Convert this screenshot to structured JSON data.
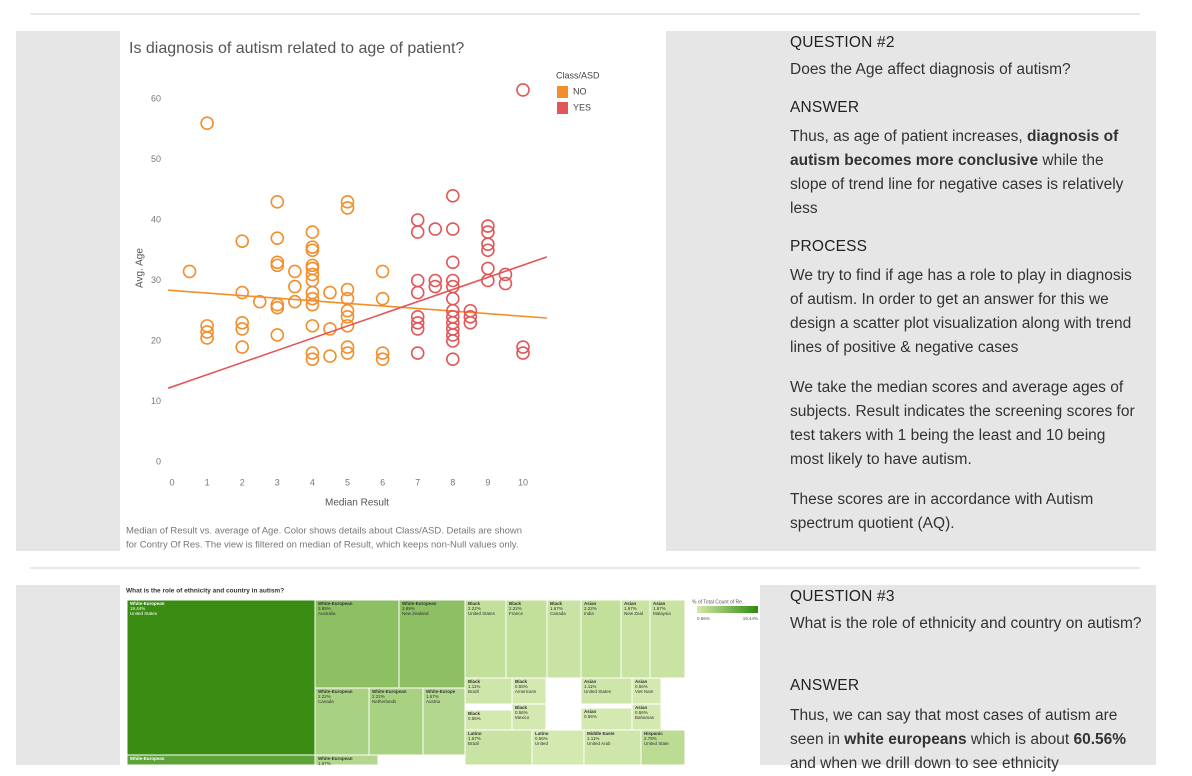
{
  "section1": {
    "question_label": "QUESTION #2",
    "question": "Does the Age affect diagnosis of autism?",
    "answer_label": "ANSWER",
    "answer": [
      {
        "text": "Thus, as age of patient increases, "
      },
      {
        "text": "diagnosis of autism becomes more conclusive",
        "bold": true
      },
      {
        "text": " while the slope of trend line for negative cases is relatively less"
      }
    ],
    "process_label": "PROCESS",
    "process": [
      "We try to find if age has a role to play in diagnosis of autism. In order to get an answer for this we design a scatter plot visualization along with trend lines of positive & negative cases",
      "We take the median scores and average ages of subjects. Result indicates the screening scores for test takers with 1 being the least and 10 being most likely to have autism.",
      "These scores are in accordance with Autism spectrum quotient (AQ)."
    ],
    "chart_data": {
      "type": "scatter",
      "title": "Is diagnosis of autism related to age of patient?",
      "x_label": "Median Result",
      "y_label": "Avg. Age",
      "legend_title": "Class/ASD",
      "caption": [
        "Median of Result vs. average of Age. Color shows details about Class/ASD. Details are shown",
        "for Contry Of Res. The view is filtered on median of Result, which keeps non-Null values only."
      ],
      "xlim": [
        -0.5,
        10.6
      ],
      "ylim": [
        -2,
        64
      ],
      "xticks": [
        0,
        1,
        2,
        3,
        4,
        5,
        6,
        7,
        8,
        9,
        10
      ],
      "yticks": [
        0,
        10,
        20,
        30,
        40,
        50,
        60
      ],
      "series": [
        {
          "name": "NO",
          "color": "#f28e2b",
          "x": [
            1,
            0.5,
            1,
            1,
            1,
            2,
            2,
            2,
            2,
            2,
            2.5,
            3,
            3,
            3,
            3,
            3,
            3,
            3,
            3.5,
            3.5,
            3.5,
            4,
            4,
            4,
            4,
            4,
            4,
            4,
            4,
            4,
            4,
            4,
            4,
            4,
            4.5,
            4.5,
            4.5,
            5,
            5,
            5,
            5,
            5,
            5,
            5,
            5,
            5,
            6,
            6,
            6,
            6
          ],
          "values": [
            56,
            31.5,
            21.5,
            20.5,
            22.5,
            36.5,
            28,
            22,
            23,
            19,
            26.5,
            43,
            37,
            33,
            32.5,
            26,
            25.5,
            21,
            31.5,
            29,
            26.5,
            38,
            35.5,
            35,
            32.5,
            32,
            31,
            30,
            28,
            27,
            26,
            22.5,
            18,
            17,
            28,
            22,
            17.5,
            43,
            42,
            28.5,
            27,
            25,
            24,
            22.5,
            19,
            18,
            31.5,
            27,
            18,
            17
          ],
          "trend": {
            "x": [
              -0.11,
              10.68
            ],
            "values": [
              28.4,
              23.8
            ]
          }
        },
        {
          "name": "YES",
          "color": "#e15759",
          "x": [
            10,
            7,
            7,
            7.5,
            8,
            8,
            8,
            7,
            7,
            7.5,
            7.5,
            8,
            8,
            8,
            8,
            8,
            8,
            8,
            8,
            8,
            8,
            7,
            7,
            7,
            7,
            9,
            9,
            9,
            9,
            9,
            9,
            9.5,
            9.5,
            10,
            10,
            8.5,
            8.5,
            8.5
          ],
          "values": [
            61.5,
            40,
            38,
            38.5,
            38.5,
            44,
            33,
            30,
            28,
            30,
            29,
            30,
            29,
            27,
            25,
            24,
            23,
            22,
            21,
            20,
            17,
            24,
            23,
            22,
            18,
            39,
            38,
            36,
            35,
            32,
            30,
            31,
            29.5,
            19,
            18,
            25,
            23,
            24
          ],
          "trend": {
            "x": [
              -0.11,
              10.68
            ],
            "values": [
              12.2,
              33.9
            ]
          }
        }
      ]
    }
  },
  "section2": {
    "question_label": "QUESTION #3",
    "question": "What is the role of ethnicity and country on autism?",
    "answer_label": "ANSWER",
    "answer": [
      {
        "text": "Thus, we can say that most cases of autism are seen in "
      },
      {
        "text": "white europeans",
        "bold": true
      },
      {
        "text": " which is about "
      },
      {
        "text": "60.56%",
        "bold": true
      },
      {
        "text": " and when we drill down to see ethnicity"
      }
    ],
    "treemap": {
      "title": "What is the role of ethnicity and country in autism?",
      "legend_title": "% of Total Count of Re..",
      "legend_min": "0.56%",
      "legend_max": "19.44%",
      "cells": [
        [
          "White-European",
          "19.44%",
          "United States"
        ],
        [
          "White-European",
          "3.89%",
          "Australia"
        ],
        [
          "White-European",
          "3.89%",
          "New Zealand"
        ],
        [
          "White-European",
          "2.22%",
          "Canada"
        ],
        [
          "White-European",
          "2.22%",
          "Netherlands"
        ],
        [
          "White-Europe",
          "1.67%",
          "Austria"
        ],
        [
          "Black",
          "2.22%",
          "United States"
        ],
        [
          "Black",
          "2.22%",
          "France"
        ],
        [
          "Black",
          "1.67%",
          "Canada"
        ],
        [
          "Asian",
          "2.22%",
          "India"
        ],
        [
          "Asian",
          "1.67%",
          "New Zeal"
        ],
        [
          "Asian",
          "1.67%",
          "Malaysia"
        ],
        [
          "Black",
          "1.11%",
          "Brazil"
        ],
        [
          "Black",
          "0.56%",
          "Americans"
        ],
        [
          "Asian",
          "1.11%",
          "United States"
        ],
        [
          "Asian",
          "0.56%",
          "Viet Nam"
        ],
        [
          "Black",
          "0.56%",
          "Mexico"
        ],
        [
          "Black",
          "0.56%"
        ],
        [
          "Asian",
          "0.56%"
        ],
        [
          "Asian",
          "0.56%",
          "Bahamas"
        ],
        [
          "Latino",
          "1.67%",
          "Brazil"
        ],
        [
          "Latino",
          "0.56%",
          "United"
        ],
        [
          "Middle Easte",
          "1.11%",
          "United Arab"
        ],
        [
          "Hispanic",
          "2.78%",
          "United State"
        ],
        [
          "White-European"
        ],
        [
          "White-European",
          "1.67%"
        ]
      ]
    }
  }
}
